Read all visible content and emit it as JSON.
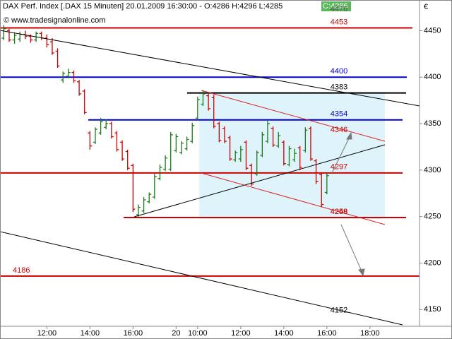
{
  "chart_data": {
    "type": "ohlc",
    "title": "DAX Perf. Index [.DAX  15 Minuten] 20.01.2009 16:30:00 - O:4286 H:4296 L:4285",
    "last_label": "C:4286",
    "copyright": "© www.tradesignalonline.com",
    "currency": "€",
    "up_color": "#1a7a1a",
    "down_color": "#cc0000",
    "xlim": [
      -0.7,
      77.2
    ],
    "xticks": [
      {
        "value": 8,
        "label": "12:00"
      },
      {
        "value": 16,
        "label": "14:00"
      },
      {
        "value": 24,
        "label": "16:00"
      },
      {
        "value": 32,
        "label": "20"
      },
      {
        "value": 36,
        "label": "10:00"
      },
      {
        "value": 44,
        "label": "12:00"
      },
      {
        "value": 52,
        "label": "14:00"
      },
      {
        "value": 60,
        "label": "16:00"
      },
      {
        "value": 68,
        "label": "18:00"
      }
    ],
    "ylim": [
      4132,
      4483
    ],
    "yticks": [
      4150,
      4200,
      4250,
      4300,
      4350,
      4400,
      4450
    ],
    "ohlc": [
      [
        4442,
        4456,
        4440,
        4452
      ],
      [
        4450,
        4452,
        4438,
        4440
      ],
      [
        4440,
        4448,
        4436,
        4445
      ],
      [
        4441,
        4449,
        4438,
        4446
      ],
      [
        4446,
        4450,
        4441,
        4444
      ],
      [
        4444,
        4446,
        4437,
        4440
      ],
      [
        4440,
        4449,
        4438,
        4447
      ],
      [
        4447,
        4449,
        4440,
        4442
      ],
      [
        4442,
        4446,
        4432,
        4435
      ],
      [
        4438,
        4442,
        4424,
        4426
      ],
      [
        4428,
        4431,
        4410,
        4412
      ],
      [
        4397,
        4406,
        4394,
        4404
      ],
      [
        4401,
        4409,
        4399,
        4405
      ],
      [
        4405,
        4407,
        4394,
        4396
      ],
      [
        4395,
        4397,
        4380,
        4382
      ],
      [
        4385,
        4387,
        4360,
        4362
      ],
      [
        4340,
        4342,
        4322,
        4326
      ],
      [
        4330,
        4346,
        4328,
        4344
      ],
      [
        4340,
        4356,
        4338,
        4352
      ],
      [
        4346,
        4355,
        4344,
        4350
      ],
      [
        4350,
        4352,
        4334,
        4336
      ],
      [
        4340,
        4342,
        4320,
        4322
      ],
      [
        4330,
        4332,
        4310,
        4312
      ],
      [
        4320,
        4322,
        4300,
        4302
      ],
      [
        4305,
        4307,
        4255,
        4258
      ],
      [
        4252,
        4263,
        4249,
        4260
      ],
      [
        4256,
        4271,
        4254,
        4268
      ],
      [
        4266,
        4276,
        4264,
        4274
      ],
      [
        4271,
        4296,
        4269,
        4293
      ],
      [
        4291,
        4306,
        4289,
        4303
      ],
      [
        4301,
        4316,
        4299,
        4313
      ],
      [
        4301,
        4341,
        4299,
        4338
      ],
      [
        4321,
        4339,
        4319,
        4336
      ],
      [
        4319,
        4331,
        4317,
        4329
      ],
      [
        4323,
        4336,
        4321,
        4333
      ],
      [
        4331,
        4351,
        4329,
        4348
      ],
      [
        4356,
        4379,
        4354,
        4376
      ],
      [
        4371,
        4386,
        4369,
        4382
      ],
      [
        4380,
        4382,
        4364,
        4366
      ],
      [
        4378,
        4381,
        4345,
        4347
      ],
      [
        4350,
        4352,
        4330,
        4332
      ],
      [
        4345,
        4347,
        4329,
        4331
      ],
      [
        4335,
        4337,
        4310,
        4312
      ],
      [
        4311,
        4321,
        4309,
        4319
      ],
      [
        4312,
        4326,
        4309,
        4322
      ],
      [
        4330,
        4332,
        4300,
        4302
      ],
      [
        4305,
        4307,
        4283,
        4285
      ],
      [
        4296,
        4321,
        4294,
        4319
      ],
      [
        4316,
        4341,
        4314,
        4338
      ],
      [
        4331,
        4353,
        4329,
        4350
      ],
      [
        4345,
        4347,
        4325,
        4327
      ],
      [
        4326,
        4341,
        4324,
        4337
      ],
      [
        4330,
        4332,
        4305,
        4307
      ],
      [
        4306,
        4326,
        4304,
        4323
      ],
      [
        4311,
        4323,
        4309,
        4318
      ],
      [
        4324,
        4326,
        4300,
        4303
      ],
      [
        4321,
        4346,
        4319,
        4343
      ],
      [
        4345,
        4347,
        4310,
        4312
      ],
      [
        4310,
        4312,
        4285,
        4288
      ],
      [
        4295,
        4297,
        4260,
        4263
      ],
      [
        4276,
        4297,
        4274,
        4294
      ]
    ],
    "levels": [
      {
        "value": 4453,
        "color": "#cc0000"
      },
      {
        "value": 4400,
        "color": "#0000cc"
      },
      {
        "value": 4383,
        "color": "#000000"
      },
      {
        "value": 4354,
        "color": "#0000cc"
      },
      {
        "value": 4297,
        "color": "#cc0000"
      },
      {
        "value": 4249,
        "color": "#cc0000"
      },
      {
        "value": 4186,
        "color": "#cc0000"
      }
    ],
    "annotations": [
      {
        "value": 4476,
        "color": "#555555"
      },
      {
        "value": 4346,
        "color": "#cc0000"
      },
      {
        "value": 4258,
        "color": "#cc0000"
      },
      {
        "value": 4152,
        "color": "#000000"
      }
    ]
  }
}
